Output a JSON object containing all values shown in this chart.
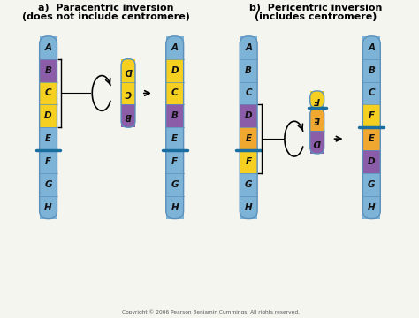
{
  "bg_color": "#f5f5f0",
  "blue": "#7eb3d8",
  "blue_dark": "#5a90bb",
  "purple": "#8b5ca8",
  "yellow": "#f5d020",
  "orange": "#f0a830",
  "centromere_color": "#1a6fa0",
  "text_color": "#111111",
  "copyright": "Copyright © 2006 Pearson Benjamin Cummings. All rights reserved.",
  "title_a1": "a)  Paracentric inversion",
  "title_a2": "(does not include centromere)",
  "title_b1": "b)  Pericentric inversion",
  "title_b2": "(includes centromere)"
}
